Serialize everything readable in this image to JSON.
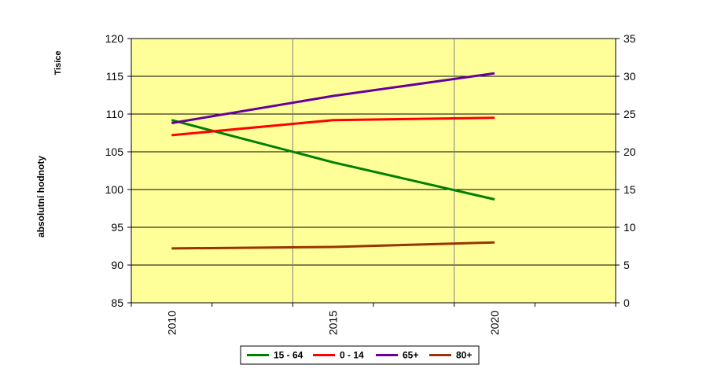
{
  "chart_data": {
    "type": "line",
    "title": "",
    "ylabel": "absolutní hodnoty",
    "unit_label": "Tisíce",
    "x_categories": [
      "2010",
      "",
      "2015",
      "",
      "2020",
      ""
    ],
    "x_tick_labels": [
      "2010",
      "2015",
      "2020"
    ],
    "x_tick_positions": [
      0,
      2,
      4
    ],
    "y_left": {
      "min": 85,
      "max": 120,
      "step": 5,
      "ticks": [
        "85",
        "90",
        "95",
        "100",
        "105",
        "110",
        "115",
        "120"
      ]
    },
    "y_right": {
      "min": 0,
      "max": 35,
      "step": 5,
      "ticks": [
        "0",
        "5",
        "10",
        "15",
        "20",
        "25",
        "30",
        "35"
      ]
    },
    "grid": true,
    "plot_background": "#ffff99",
    "legend_position": "bottom",
    "series": [
      {
        "name": "15 - 64",
        "color": "#008000",
        "axis": "left",
        "x": [
          0,
          2,
          4
        ],
        "values": [
          109.2,
          103.6,
          98.7
        ]
      },
      {
        "name": "0 - 14",
        "color": "#ff0000",
        "axis": "right",
        "x": [
          0,
          2,
          4
        ],
        "values": [
          22.2,
          24.2,
          24.5
        ]
      },
      {
        "name": "65+",
        "color": "#660099",
        "axis": "right",
        "x": [
          0,
          2,
          4
        ],
        "values": [
          23.8,
          27.4,
          30.4
        ]
      },
      {
        "name": "80+",
        "color": "#993300",
        "axis": "right",
        "x": [
          0,
          2,
          4
        ],
        "values": [
          7.2,
          7.4,
          8.0
        ]
      }
    ]
  }
}
